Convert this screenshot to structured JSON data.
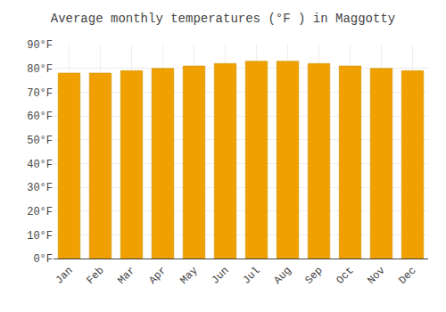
{
  "chart_data": {
    "type": "bar",
    "title": "Average monthly temperatures (°F ) in Maggotty",
    "categories": [
      "Jan",
      "Feb",
      "Mar",
      "Apr",
      "May",
      "Jun",
      "Jul",
      "Aug",
      "Sep",
      "Oct",
      "Nov",
      "Dec"
    ],
    "values": [
      78,
      78,
      79,
      80,
      81,
      82,
      83,
      83,
      82,
      81,
      80,
      79
    ],
    "color": "#F0A000",
    "ylim": [
      0,
      90
    ],
    "yticks": [
      {
        "value": 0,
        "label": "0°F"
      },
      {
        "value": 10,
        "label": "10°F"
      },
      {
        "value": 20,
        "label": "20°F"
      },
      {
        "value": 30,
        "label": "30°F"
      },
      {
        "value": 40,
        "label": "40°F"
      },
      {
        "value": 50,
        "label": "50°F"
      },
      {
        "value": 60,
        "label": "60°F"
      },
      {
        "value": 70,
        "label": "70°F"
      },
      {
        "value": 80,
        "label": "80°F"
      },
      {
        "value": 90,
        "label": "90°F"
      }
    ],
    "grid": true
  }
}
